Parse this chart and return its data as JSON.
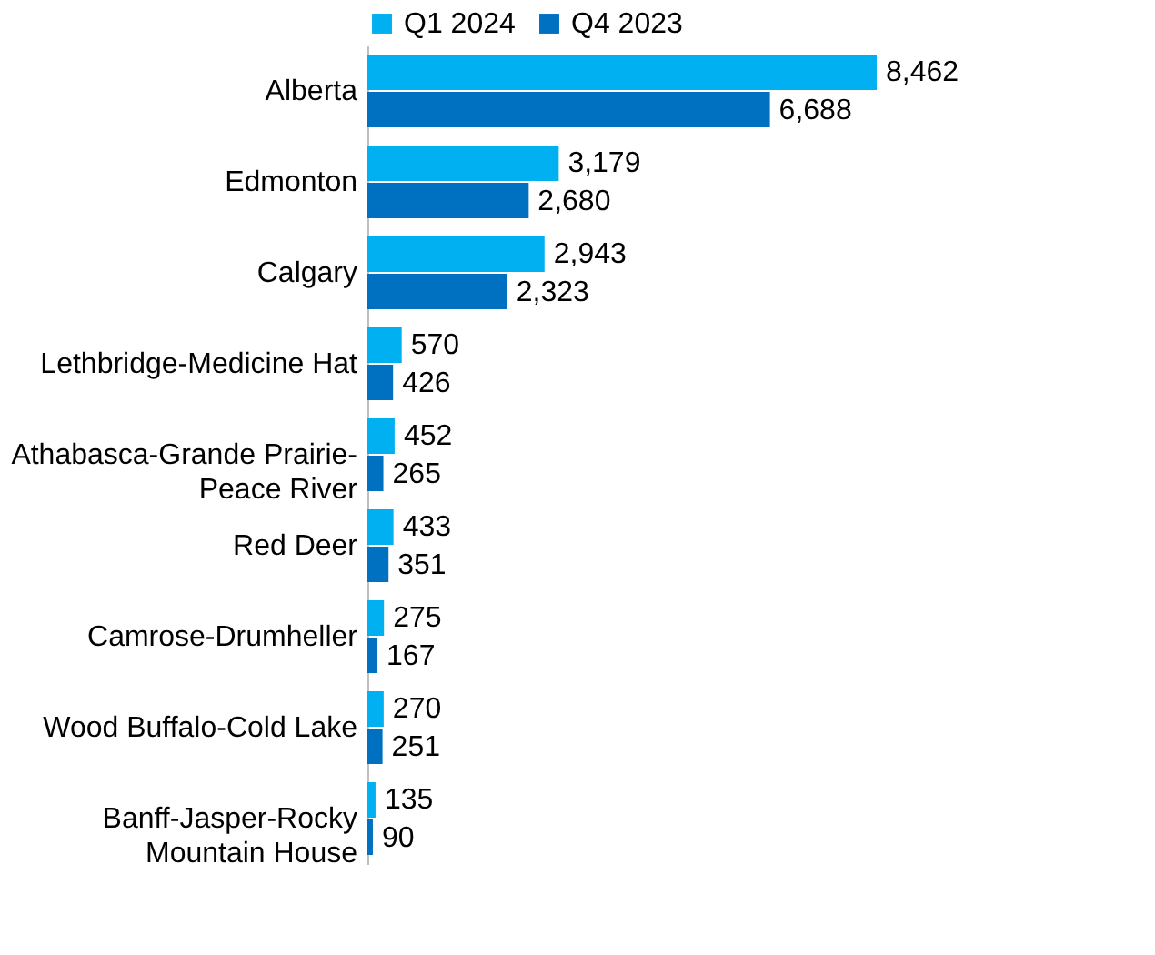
{
  "chart_data": {
    "type": "bar",
    "orientation": "horizontal",
    "categories": [
      "Alberta",
      "Edmonton",
      "Calgary",
      "Lethbridge-Medicine Hat",
      "Athabasca-Grande Prairie-\nPeace River",
      "Red Deer",
      "Camrose-Drumheller",
      "Wood Buffalo-Cold Lake",
      "Banff-Jasper-Rocky\nMountain House"
    ],
    "series": [
      {
        "name": "Q1 2024",
        "color": "#00b0f0",
        "values": [
          8462,
          3179,
          2943,
          570,
          452,
          433,
          275,
          270,
          135
        ],
        "value_labels": [
          "8,462",
          "3,179",
          "2,943",
          "570",
          "452",
          "433",
          "275",
          "270",
          "135"
        ]
      },
      {
        "name": "Q4 2023",
        "color": "#0070c0",
        "values": [
          6688,
          2680,
          2323,
          426,
          265,
          351,
          167,
          251,
          90
        ],
        "value_labels": [
          "6,688",
          "2,680",
          "2,323",
          "426",
          "265",
          "351",
          "167",
          "251",
          "90"
        ]
      }
    ],
    "legend": "top",
    "tick_labels": "y",
    "grid": false
  }
}
